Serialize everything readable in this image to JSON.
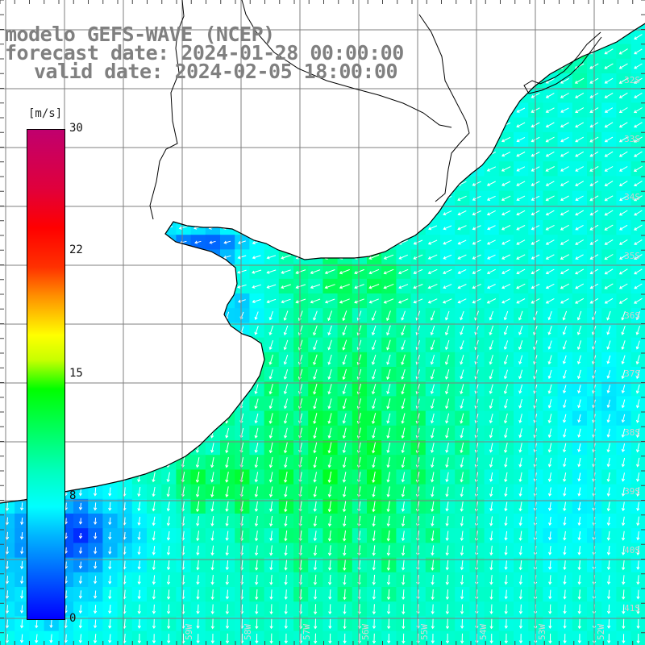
{
  "title": {
    "model": "modelo GEFS-WAVE (NCEP)",
    "forecast_date": "forecast date: 2024-01-28 00:00:00",
    "valid_date": "valid date: 2024-02-05 18:00:00"
  },
  "colorbar": {
    "unit": "[m/s]",
    "ticks": [
      "30",
      "22",
      "15",
      "8",
      "0"
    ],
    "tick_values": [
      30,
      22,
      15,
      8,
      0
    ],
    "range": [
      0,
      30
    ],
    "colors": [
      "#0000ff",
      "#00b4ff",
      "#00ffff",
      "#00ff00",
      "#ffff00",
      "#ff9000",
      "#ff0000",
      "#c0006e"
    ]
  },
  "axes": {
    "lat_labels": [
      "32S",
      "33S",
      "34S",
      "35S",
      "36S",
      "37S",
      "38S",
      "39S",
      "40S",
      "41S"
    ],
    "lon_labels": [
      "59W",
      "58W",
      "57W",
      "56W",
      "55W",
      "54W",
      "53W",
      "52W",
      "51W"
    ],
    "lon_range": [
      "60W",
      "50W"
    ],
    "lat_range": [
      "31S",
      "41S"
    ]
  },
  "map": {
    "field": "wind speed with direction arrows",
    "land_color": "#ffffff",
    "coast_color": "#000000",
    "grid_color": "#7f7f7f",
    "arrow_color": "#ffffff"
  }
}
